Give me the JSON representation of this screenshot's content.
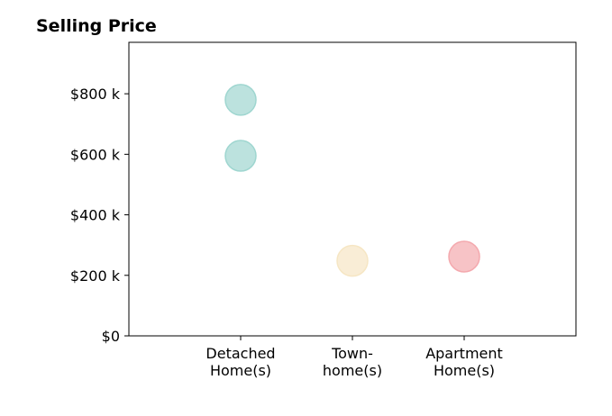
{
  "chart_data": {
    "type": "scatter",
    "title": "Selling Price",
    "xlabel": "",
    "ylabel": "",
    "categories": [
      "Detached\nHome(s)",
      "Town-\nhome(s)",
      "Apartment\nHome(s)"
    ],
    "yticks": [
      0,
      200,
      400,
      600,
      800
    ],
    "ytick_labels": [
      "$0",
      "$200 k",
      "$400 k",
      "$600 k",
      "$800 k"
    ],
    "ylim": [
      0,
      970
    ],
    "xlim": [
      -1,
      3
    ],
    "grid": false,
    "points": [
      {
        "category_index": 0,
        "y": 780,
        "color": "#9fd6d0"
      },
      {
        "category_index": 0,
        "y": 595,
        "color": "#9fd6d0"
      },
      {
        "category_index": 1,
        "y": 248,
        "color": "#f6e6c4"
      },
      {
        "category_index": 2,
        "y": 262,
        "color": "#f4a9ae"
      }
    ],
    "marker_colors": {
      "detached": "#9fd6d0",
      "town": "#f6e6c4",
      "apartment": "#f4a9ae"
    }
  }
}
